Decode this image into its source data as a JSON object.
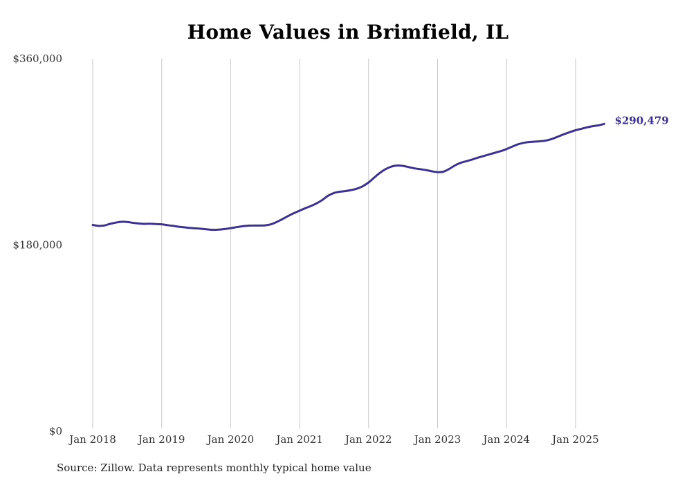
{
  "chart_data": {
    "type": "line",
    "title": "Home Values in Brimfield, IL",
    "source": "Source: Zillow. Data represents monthly typical home value",
    "ylim": [
      0,
      360000
    ],
    "y_ticks": [
      0,
      180000,
      360000
    ],
    "y_tick_labels": [
      "$0",
      "$180,000",
      "$360,000"
    ],
    "x_ticks": [
      "Jan 2018",
      "Jan 2019",
      "Jan 2020",
      "Jan 2021",
      "Jan 2022",
      "Jan 2023",
      "Jan 2024",
      "Jan 2025"
    ],
    "x_range": [
      "2018-01",
      "2025-06"
    ],
    "grid": "vertical lines at January of each year",
    "line_color": "#3a3192",
    "end_label": "$290,479",
    "series": [
      {
        "points": [
          [
            "2018-01",
            198800
          ],
          [
            "2018-02",
            197800
          ],
          [
            "2018-03",
            198200
          ],
          [
            "2018-04",
            199800
          ],
          [
            "2018-05",
            201000
          ],
          [
            "2018-06",
            201800
          ],
          [
            "2018-07",
            201600
          ],
          [
            "2018-08",
            200800
          ],
          [
            "2018-09",
            200200
          ],
          [
            "2018-10",
            199800
          ],
          [
            "2018-11",
            200000
          ],
          [
            "2018-12",
            199600
          ],
          [
            "2019-01",
            199400
          ],
          [
            "2019-02",
            198600
          ],
          [
            "2019-03",
            197800
          ],
          [
            "2019-04",
            197000
          ],
          [
            "2019-05",
            196400
          ],
          [
            "2019-06",
            195800
          ],
          [
            "2019-07",
            195400
          ],
          [
            "2019-08",
            195000
          ],
          [
            "2019-09",
            194400
          ],
          [
            "2019-10",
            194000
          ],
          [
            "2019-11",
            194200
          ],
          [
            "2019-12",
            194800
          ],
          [
            "2020-01",
            195600
          ],
          [
            "2020-02",
            196600
          ],
          [
            "2020-03",
            197400
          ],
          [
            "2020-04",
            198000
          ],
          [
            "2020-05",
            198200
          ],
          [
            "2020-06",
            198200
          ],
          [
            "2020-07",
            198400
          ],
          [
            "2020-08",
            199400
          ],
          [
            "2020-09",
            201600
          ],
          [
            "2020-10",
            204400
          ],
          [
            "2020-11",
            207400
          ],
          [
            "2020-12",
            210200
          ],
          [
            "2021-01",
            212600
          ],
          [
            "2021-02",
            215000
          ],
          [
            "2021-03",
            217200
          ],
          [
            "2021-04",
            219800
          ],
          [
            "2021-05",
            223200
          ],
          [
            "2021-06",
            227200
          ],
          [
            "2021-07",
            229800
          ],
          [
            "2021-08",
            231000
          ],
          [
            "2021-09",
            231600
          ],
          [
            "2021-10",
            232600
          ],
          [
            "2021-11",
            234000
          ],
          [
            "2021-12",
            236400
          ],
          [
            "2022-01",
            240000
          ],
          [
            "2022-02",
            244800
          ],
          [
            "2022-03",
            249400
          ],
          [
            "2022-04",
            253000
          ],
          [
            "2022-05",
            255400
          ],
          [
            "2022-06",
            256400
          ],
          [
            "2022-07",
            256000
          ],
          [
            "2022-08",
            254800
          ],
          [
            "2022-09",
            253600
          ],
          [
            "2022-10",
            252800
          ],
          [
            "2022-11",
            252000
          ],
          [
            "2022-12",
            250800
          ],
          [
            "2023-01",
            250000
          ],
          [
            "2023-02",
            250400
          ],
          [
            "2023-03",
            253000
          ],
          [
            "2023-04",
            256400
          ],
          [
            "2023-05",
            259000
          ],
          [
            "2023-06",
            260600
          ],
          [
            "2023-07",
            262200
          ],
          [
            "2023-08",
            264000
          ],
          [
            "2023-09",
            265600
          ],
          [
            "2023-10",
            267200
          ],
          [
            "2023-11",
            268800
          ],
          [
            "2023-12",
            270400
          ],
          [
            "2024-01",
            272400
          ],
          [
            "2024-02",
            274800
          ],
          [
            "2024-03",
            277000
          ],
          [
            "2024-04",
            278400
          ],
          [
            "2024-05",
            279200
          ],
          [
            "2024-06",
            279600
          ],
          [
            "2024-07",
            280000
          ],
          [
            "2024-08",
            280800
          ],
          [
            "2024-09",
            282400
          ],
          [
            "2024-10",
            284600
          ],
          [
            "2024-11",
            286800
          ],
          [
            "2024-12",
            288800
          ],
          [
            "2025-01",
            290600
          ],
          [
            "2025-02",
            292000
          ],
          [
            "2025-03",
            293400
          ],
          [
            "2025-04",
            294600
          ],
          [
            "2025-05",
            295400
          ],
          [
            "2025-06",
            296800
          ]
        ]
      }
    ]
  }
}
